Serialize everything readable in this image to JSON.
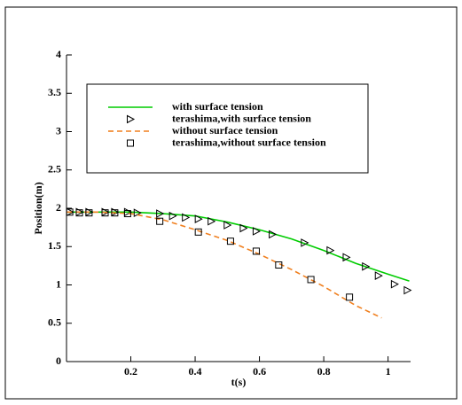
{
  "chart_data": {
    "type": "line",
    "x_label": "t(s)",
    "y_label": "Position(m)",
    "xlim": [
      0,
      1.07
    ],
    "ylim": [
      0,
      4
    ],
    "xticks": [
      0.2,
      0.4,
      0.6,
      0.8,
      1
    ],
    "yticks": [
      0,
      0.5,
      1,
      1.5,
      2,
      2.5,
      3,
      3.5,
      4
    ],
    "series": [
      {
        "name": "with surface tension",
        "color": "#00cc00",
        "style": "line",
        "dash": false,
        "x": [
          0,
          0.1,
          0.2,
          0.25,
          0.3,
          0.4,
          0.5,
          0.6,
          0.7,
          0.8,
          0.9,
          1.0,
          1.066
        ],
        "values": [
          1.95,
          1.95,
          1.95,
          1.94,
          1.93,
          1.9,
          1.82,
          1.72,
          1.6,
          1.45,
          1.28,
          1.14,
          1.05
        ]
      },
      {
        "name": "terashima,with surface tension",
        "color": "#000000",
        "style": "markers",
        "marker": "triangle",
        "x": [
          0.01,
          0.04,
          0.07,
          0.12,
          0.15,
          0.19,
          0.22,
          0.29,
          0.33,
          0.37,
          0.41,
          0.45,
          0.5,
          0.55,
          0.59,
          0.64,
          0.74,
          0.82,
          0.87,
          0.93,
          0.97,
          1.02,
          1.06
        ],
        "values": [
          1.95,
          1.95,
          1.95,
          1.95,
          1.95,
          1.95,
          1.94,
          1.93,
          1.9,
          1.88,
          1.86,
          1.83,
          1.78,
          1.74,
          1.7,
          1.66,
          1.55,
          1.45,
          1.36,
          1.24,
          1.12,
          1.01,
          0.93
        ]
      },
      {
        "name": "without surface tension",
        "color": "#f08020",
        "style": "line",
        "dash": true,
        "x": [
          0,
          0.1,
          0.2,
          0.3,
          0.4,
          0.5,
          0.6,
          0.7,
          0.8,
          0.9,
          0.98
        ],
        "values": [
          1.95,
          1.95,
          1.93,
          1.85,
          1.72,
          1.58,
          1.4,
          1.2,
          0.98,
          0.73,
          0.57
        ]
      },
      {
        "name": "terashima,without surface tension",
        "color": "#000000",
        "style": "markers",
        "marker": "square",
        "x": [
          0.01,
          0.04,
          0.07,
          0.12,
          0.15,
          0.19,
          0.29,
          0.41,
          0.51,
          0.59,
          0.66,
          0.76,
          0.88
        ],
        "values": [
          1.95,
          1.94,
          1.94,
          1.94,
          1.94,
          1.93,
          1.83,
          1.69,
          1.57,
          1.44,
          1.26,
          1.07,
          0.84
        ]
      }
    ]
  }
}
